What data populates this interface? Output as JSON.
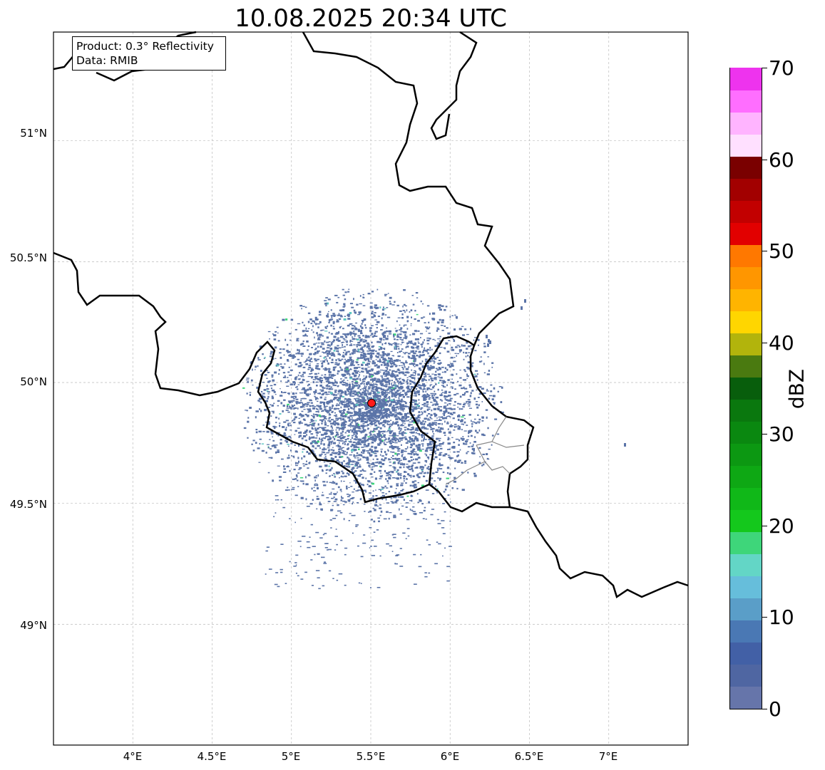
{
  "title": "10.08.2025 20:34 UTC",
  "info_box": {
    "product": "Product: 0.3° Reflectivity",
    "data": "Data: RMIB"
  },
  "map": {
    "lon_range": [
      3.5,
      7.5
    ],
    "lat_range": [
      48.5,
      51.45
    ],
    "x_ticks": [
      "4°E",
      "4.5°E",
      "5°E",
      "5.5°E",
      "6°E",
      "6.5°E",
      "7°E"
    ],
    "y_ticks": [
      "51°N",
      "50.5°N",
      "50°N",
      "49.5°N",
      "49°N"
    ],
    "gridlines": true,
    "radar_site": {
      "lon": 5.505,
      "lat": 49.915,
      "marker_color": "#ff1a1a"
    },
    "echo_color": "#5b74a8"
  },
  "colorbar": {
    "label": "dBZ",
    "min": 0,
    "max": 70,
    "ticks": [
      "0",
      "10",
      "20",
      "30",
      "40",
      "50",
      "60",
      "70"
    ],
    "colors": [
      "#6675aa",
      "#4f66a2",
      "#4260a6",
      "#4a78b4",
      "#5a9ec8",
      "#66bedb",
      "#63d6c6",
      "#3ed67a",
      "#14c81c",
      "#10b818",
      "#0ea814",
      "#0c9812",
      "#0a8810",
      "#0a780e",
      "#085e0c",
      "#4a7a10",
      "#b2b40c",
      "#ffd600",
      "#ffb400",
      "#ff9600",
      "#ff7800",
      "#e20000",
      "#c20000",
      "#a20000",
      "#7a0000",
      "#ffe0ff",
      "#ffb4ff",
      "#ff6eff",
      "#ee33ee"
    ]
  }
}
